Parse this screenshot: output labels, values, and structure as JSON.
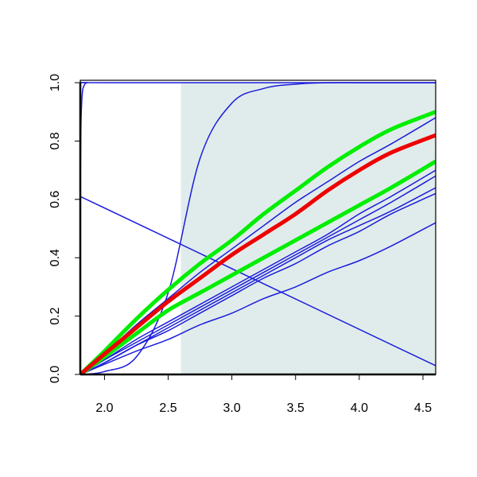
{
  "chart_data": {
    "type": "line",
    "x": [
      1.81,
      2.0,
      2.25,
      2.5,
      2.75,
      3.0,
      3.25,
      3.5,
      3.75,
      4.0,
      4.25,
      4.6
    ],
    "xlim": [
      1.81,
      4.6
    ],
    "ylim": [
      0,
      1
    ],
    "xticks": [
      {
        "value": 2,
        "label": "2.0"
      },
      2.5,
      {
        "value": 3,
        "label": "3.0"
      },
      3.5,
      {
        "value": 4,
        "label": "4.0"
      },
      4.5
    ],
    "yticks": [
      {
        "value": 0,
        "label": "0.0"
      },
      0.2,
      0.4,
      0.6,
      0.8,
      {
        "value": 1,
        "label": "1.0"
      }
    ],
    "shaded_region": {
      "x": [
        2.6,
        4.6
      ],
      "y": [
        0,
        1
      ],
      "color": "#e0eceb"
    },
    "series": [
      {
        "color": "#1c1cdc",
        "width": 1.5,
        "x": [
          1.81,
          1.815,
          1.825,
          1.84,
          1.87,
          2.0,
          4.6
        ],
        "values": [
          0.6,
          0.85,
          0.96,
          0.99,
          1.0,
          1.0,
          1.0
        ]
      },
      {
        "color": "#1c1cdc",
        "width": 1.5,
        "x": [
          1.81,
          4.6
        ],
        "values": [
          0.61,
          0.03
        ]
      },
      {
        "color": "#1c1cdc",
        "width": 1.5,
        "values": [
          0,
          0.01,
          0.06,
          0.28,
          0.74,
          0.93,
          0.98,
          0.995,
          1,
          1,
          1,
          1
        ]
      },
      {
        "color": "#1c1cdc",
        "width": 1.5,
        "values": [
          0,
          0.07,
          0.17,
          0.26,
          0.35,
          0.43,
          0.51,
          0.59,
          0.66,
          0.73,
          0.79,
          0.88
        ]
      },
      {
        "color": "#1c1cdc",
        "width": 1.5,
        "values": [
          0,
          0.05,
          0.12,
          0.18,
          0.24,
          0.3,
          0.36,
          0.42,
          0.48,
          0.55,
          0.61,
          0.7
        ]
      },
      {
        "color": "#1c1cdc",
        "width": 1.5,
        "values": [
          0,
          0.05,
          0.11,
          0.17,
          0.23,
          0.29,
          0.35,
          0.41,
          0.47,
          0.53,
          0.59,
          0.68
        ]
      },
      {
        "color": "#1c1cdc",
        "width": 1.5,
        "values": [
          0,
          0.04,
          0.1,
          0.16,
          0.22,
          0.28,
          0.34,
          0.4,
          0.46,
          0.51,
          0.56,
          0.64
        ]
      },
      {
        "color": "#1c1cdc",
        "width": 1.5,
        "values": [
          0,
          0.04,
          0.1,
          0.15,
          0.21,
          0.27,
          0.33,
          0.38,
          0.44,
          0.49,
          0.55,
          0.62
        ]
      },
      {
        "color": "#1c1cdc",
        "width": 1.5,
        "values": [
          0,
          0.035,
          0.08,
          0.12,
          0.17,
          0.21,
          0.26,
          0.3,
          0.35,
          0.39,
          0.44,
          0.52
        ]
      },
      {
        "color": "#00ee00",
        "width": 5,
        "values": [
          0,
          0.08,
          0.19,
          0.29,
          0.38,
          0.46,
          0.55,
          0.63,
          0.71,
          0.78,
          0.84,
          0.9
        ]
      },
      {
        "color": "#00ee00",
        "width": 5,
        "values": [
          0,
          0.06,
          0.14,
          0.22,
          0.28,
          0.34,
          0.4,
          0.46,
          0.52,
          0.58,
          0.64,
          0.73
        ]
      },
      {
        "color": "#ee0000",
        "width": 5,
        "values": [
          0,
          0.07,
          0.16,
          0.25,
          0.33,
          0.41,
          0.48,
          0.55,
          0.63,
          0.7,
          0.76,
          0.82
        ]
      }
    ]
  }
}
